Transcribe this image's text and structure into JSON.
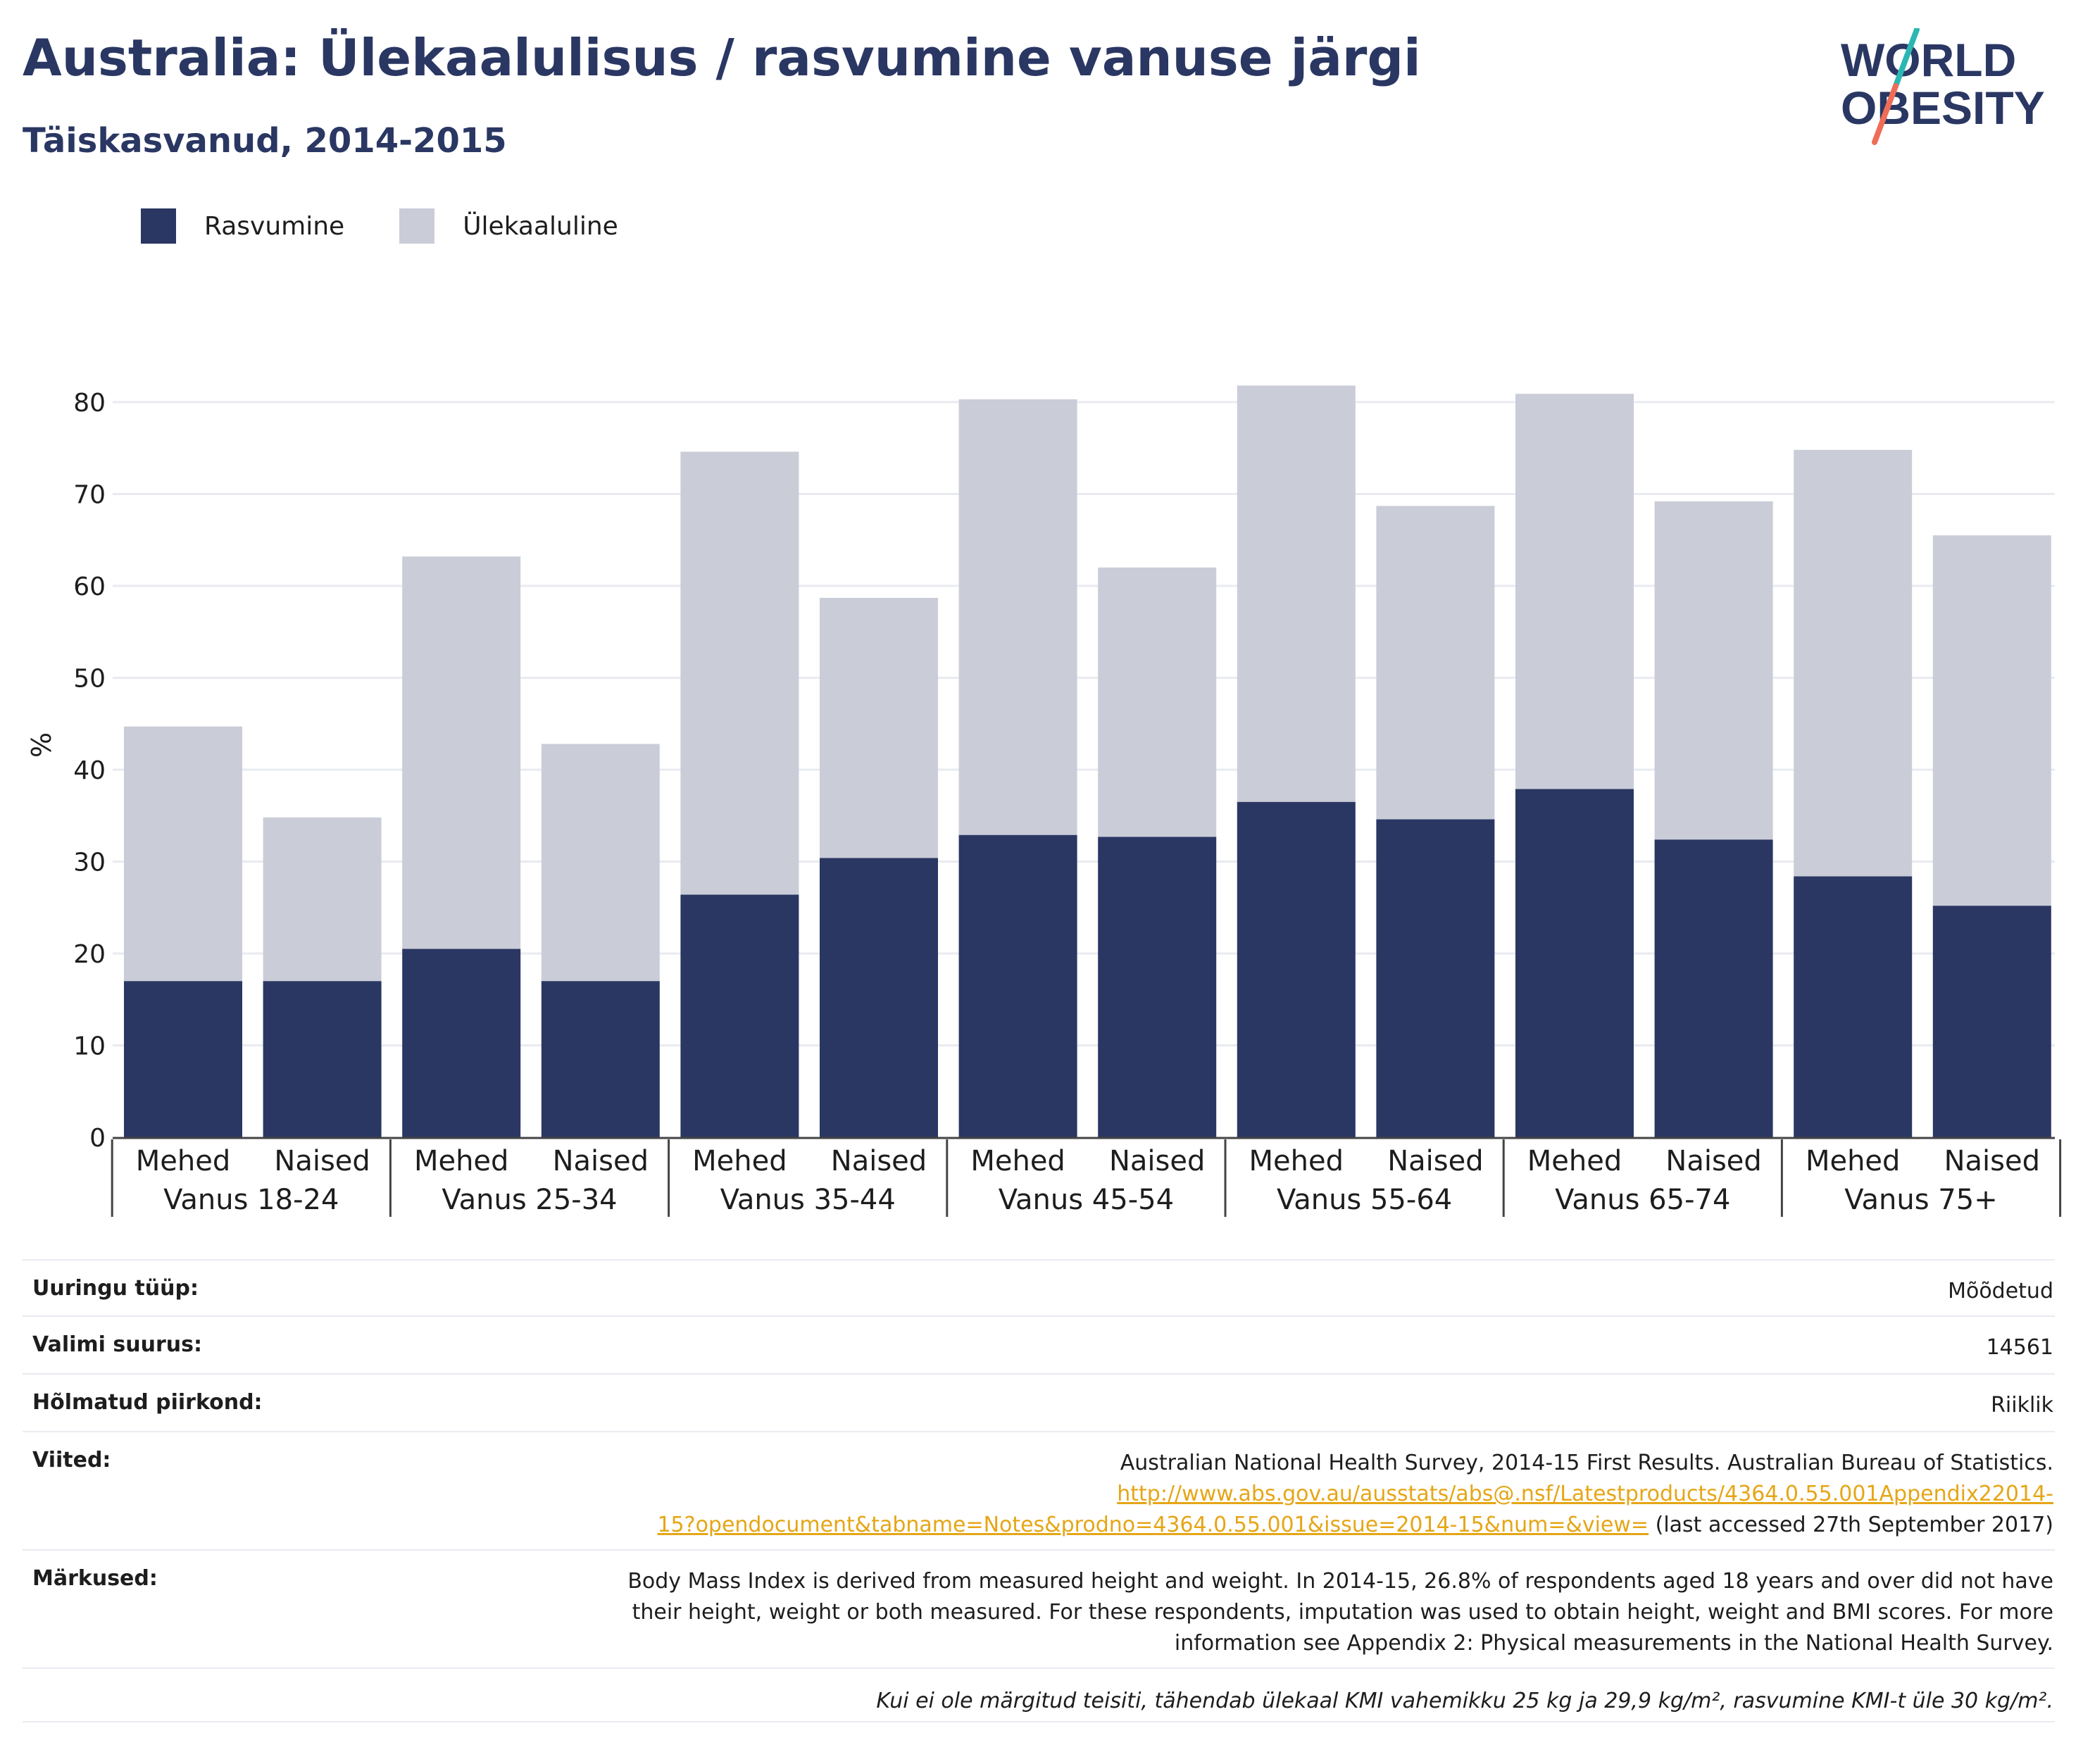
{
  "header": {
    "title": "Australia: Ülekaalulisus / rasvumine vanuse järgi",
    "subtitle": "Täiskasvanud, 2014-2015"
  },
  "logo": {
    "line1": "WORLD",
    "line2": "OBESITY"
  },
  "colors": {
    "rasvumine": "#2a3763",
    "ulekaaluline": "#cacdd8",
    "accent_link": "#e5a616"
  },
  "chart_data": {
    "type": "bar",
    "stacked": true,
    "title": "Australia: Ülekaalulisus / rasvumine vanuse järgi",
    "subtitle": "Täiskasvanud, 2014-2015",
    "ylabel": "%",
    "ylim": [
      0,
      85
    ],
    "yticks": [
      0,
      10,
      20,
      30,
      40,
      50,
      60,
      70,
      80
    ],
    "grid": true,
    "legend_position": "top-left",
    "groups": [
      "Vanus 18-24",
      "Vanus 25-34",
      "Vanus 35-44",
      "Vanus 45-54",
      "Vanus 55-64",
      "Vanus 65-74",
      "Vanus 75+"
    ],
    "subcategories": [
      "Mehed",
      "Naised"
    ],
    "series": [
      {
        "name": "Rasvumine",
        "values": [
          17.0,
          17.0,
          20.5,
          17.0,
          26.4,
          30.4,
          32.9,
          32.7,
          36.5,
          34.6,
          37.9,
          32.4,
          28.4,
          25.2
        ]
      },
      {
        "name": "Ülekaaluline",
        "values": [
          27.7,
          17.8,
          42.7,
          25.8,
          48.2,
          28.3,
          47.4,
          29.3,
          45.3,
          34.1,
          43.0,
          36.8,
          46.4,
          40.3
        ]
      }
    ]
  },
  "info": {
    "survey_type": {
      "label": "Uuringu tüüp:",
      "value": "Mõõdetud"
    },
    "sample_size": {
      "label": "Valimi suurus:",
      "value": "14561"
    },
    "region": {
      "label": "Hõlmatud piirkond:",
      "value": "Riiklik"
    },
    "references": {
      "label": "Viited:",
      "text": "Australian National Health Survey, 2014-15 First Results. Australian Bureau of Statistics.",
      "link_line1": "http://www.abs.gov.au/ausstats/abs@.nsf/Latestproducts/4364.0.55.001Appendix22014-",
      "link_line2": "15?opendocument&tabname=Notes&prodno=4364.0.55.001&issue=2014-15&num=&view=",
      "suffix": " (last accessed 27th September 2017)"
    },
    "notes": {
      "label": "Märkused:",
      "line1": "Body Mass Index is derived from measured height and weight. In 2014-15, 26.8% of respondents aged 18 years and over did not have",
      "line2": "their height, weight or both measured. For these respondents, imputation was used to obtain height, weight and BMI scores. For more",
      "line3": "information see Appendix 2: Physical measurements in the National Health Survey."
    },
    "footnote": "Kui ei ole märgitud teisiti, tähendab ülekaal KMI vahemikku 25 kg ja 29,9 kg/m², rasvumine KMI-t üle 30 kg/m²."
  }
}
